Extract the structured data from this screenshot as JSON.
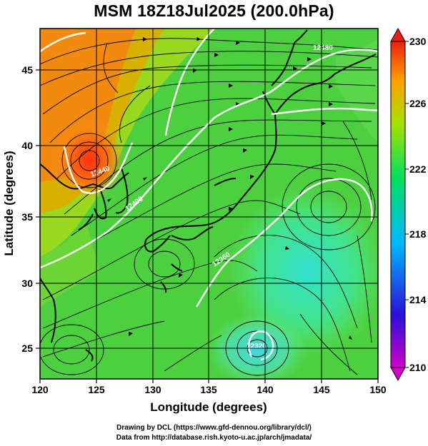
{
  "title": "MSM 18Z18Jul2025 (200.0hPa)",
  "map": {
    "xlabel": "Longitude (degrees)",
    "ylabel": "Latitude  (degrees)",
    "lon_range": [
      120,
      150
    ],
    "lat_range": [
      22.8,
      47.8
    ],
    "lon_ticks": [
      "120",
      "125",
      "130",
      "135",
      "140",
      "145",
      "150"
    ],
    "lat_ticks": [
      "25",
      "30",
      "35",
      "40",
      "45"
    ],
    "grid": true,
    "contour_labels": [
      "12480",
      "12440",
      "12400",
      "12360",
      "12320"
    ]
  },
  "colorbar": {
    "min": 210,
    "max": 230,
    "labels": [
      "230",
      "226",
      "222",
      "218",
      "214",
      "210"
    ],
    "colors": [
      "#d400c8",
      "#2a10d8",
      "#00b8ff",
      "#00e060",
      "#a8e000",
      "#ffa000",
      "#e82010"
    ]
  },
  "credits": [
    "Drawing by DCL (https://www.gfd-dennou.org/library/dcl/)",
    "Data from http://database.rish.kyoto-u.ac.jp/arch/jmadata/"
  ]
}
